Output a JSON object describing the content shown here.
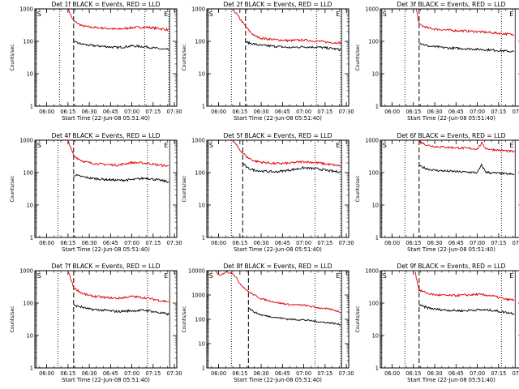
{
  "chart_data": [
    {
      "type": "line",
      "title": "Det 1f BLACK = Events, RED = LLD",
      "ylabel": "Counts/sec",
      "xlabel": "Start Time (22-Jun-08 05:51:40)",
      "xticks": [
        "06:00",
        "06:15",
        "06:30",
        "06:45",
        "07:00",
        "07:15",
        "07:30"
      ],
      "yticks": [
        "1",
        "10",
        "100",
        "1000"
      ],
      "yscale": "log",
      "ylim": [
        1,
        1000
      ],
      "markers": [
        "S",
        "E"
      ],
      "series": [
        {
          "color": "#e00000",
          "x": [
            "06:15",
            "06:19",
            "06:25",
            "06:30",
            "06:40",
            "06:50",
            "07:00",
            "07:10",
            "07:20",
            "07:26"
          ],
          "y": [
            1000,
            420,
            300,
            275,
            255,
            235,
            265,
            275,
            245,
            225
          ]
        },
        {
          "color": "#000000",
          "x": [
            "06:19",
            "06:25",
            "06:30",
            "06:40",
            "06:50",
            "07:00",
            "07:10",
            "07:20",
            "07:26"
          ],
          "y": [
            95,
            82,
            75,
            70,
            64,
            72,
            68,
            58,
            55
          ]
        }
      ]
    },
    {
      "type": "line",
      "title": "Det 2f BLACK = Events, RED = LLD",
      "ylabel": "Counts/sec",
      "xlabel": "Start Time (22-Jun-08 05:51:40)",
      "xticks": [
        "06:00",
        "06:15",
        "06:30",
        "06:45",
        "07:00",
        "07:15",
        "07:30"
      ],
      "yticks": [
        "1",
        "10",
        "100",
        "1000"
      ],
      "yscale": "log",
      "ylim": [
        1,
        1000
      ],
      "markers": [
        "S",
        "E"
      ],
      "series": [
        {
          "color": "#e00000",
          "x": [
            "06:10",
            "06:15",
            "06:20",
            "06:25",
            "06:30",
            "06:40",
            "06:50",
            "07:00",
            "07:10",
            "07:20",
            "07:26"
          ],
          "y": [
            1000,
            500,
            250,
            150,
            125,
            112,
            105,
            110,
            100,
            92,
            90
          ]
        },
        {
          "color": "#000000",
          "x": [
            "06:19",
            "06:25",
            "06:30",
            "06:40",
            "06:50",
            "07:00",
            "07:10",
            "07:20",
            "07:26"
          ],
          "y": [
            95,
            82,
            75,
            70,
            64,
            68,
            66,
            60,
            55
          ]
        }
      ]
    },
    {
      "type": "line",
      "title": "Det 3f BLACK = Events, RED = LLD",
      "ylabel": "Counts/sec",
      "xlabel": "Start Time (22-Jun-08 05:51:40)",
      "xticks": [
        "06:00",
        "06:15",
        "06:30",
        "06:45",
        "07:00",
        "07:15",
        "07:30"
      ],
      "yticks": [
        "1",
        "10",
        "100",
        "1000"
      ],
      "yscale": "log",
      "ylim": [
        1,
        1000
      ],
      "markers": [
        "S",
        "E"
      ],
      "series": [
        {
          "color": "#e00000",
          "x": [
            "06:17",
            "06:19",
            "06:25",
            "06:30",
            "06:40",
            "06:50",
            "07:00",
            "07:10",
            "07:20",
            "07:26"
          ],
          "y": [
            1000,
            330,
            260,
            240,
            220,
            210,
            200,
            185,
            170,
            160
          ]
        },
        {
          "color": "#000000",
          "x": [
            "06:19",
            "06:25",
            "06:30",
            "06:40",
            "06:50",
            "07:00",
            "07:10",
            "07:20",
            "07:26"
          ],
          "y": [
            90,
            72,
            68,
            62,
            60,
            57,
            54,
            50,
            48
          ]
        }
      ]
    },
    {
      "type": "line",
      "title": "Det 4f BLACK = Events, RED = LLD",
      "ylabel": "Counts/sec",
      "xlabel": "Start Time (22-Jun-08 05:51:40)",
      "xticks": [
        "06:00",
        "06:15",
        "06:30",
        "06:45",
        "07:00",
        "07:15",
        "07:30"
      ],
      "yticks": [
        "1",
        "10",
        "100",
        "1000"
      ],
      "yscale": "log",
      "ylim": [
        1,
        1000
      ],
      "markers": [
        "S",
        "E"
      ],
      "series": [
        {
          "color": "#e00000",
          "x": [
            "06:15",
            "06:19",
            "06:25",
            "06:30",
            "06:40",
            "06:50",
            "07:00",
            "07:10",
            "07:20",
            "07:26"
          ],
          "y": [
            1000,
            330,
            230,
            200,
            180,
            170,
            205,
            195,
            170,
            160
          ]
        },
        {
          "color": "#000000",
          "x": [
            "06:19",
            "06:25",
            "06:30",
            "06:40",
            "06:50",
            "07:00",
            "07:10",
            "07:20",
            "07:26"
          ],
          "y": [
            85,
            75,
            68,
            62,
            58,
            60,
            68,
            58,
            52
          ]
        }
      ]
    },
    {
      "type": "line",
      "title": "Det 5f BLACK = Events, RED = LLD",
      "ylabel": "Counts/sec",
      "xlabel": "Start Time (22-Jun-08 05:51:40)",
      "xticks": [
        "06:00",
        "06:15",
        "06:30",
        "06:45",
        "07:00",
        "07:15",
        "07:30"
      ],
      "yticks": [
        "1",
        "10",
        "100",
        "1000"
      ],
      "yscale": "log",
      "ylim": [
        1,
        1000
      ],
      "markers": [
        "S",
        "E"
      ],
      "series": [
        {
          "color": "#e00000",
          "x": [
            "06:10",
            "06:15",
            "06:20",
            "06:25",
            "06:30",
            "06:40",
            "06:50",
            "07:00",
            "07:10",
            "07:20",
            "07:26"
          ],
          "y": [
            1000,
            500,
            300,
            230,
            210,
            190,
            195,
            220,
            200,
            175,
            160
          ]
        },
        {
          "color": "#000000",
          "x": [
            "06:17",
            "06:20",
            "06:25",
            "06:30",
            "06:40",
            "06:50",
            "07:00",
            "07:10",
            "07:20",
            "07:26"
          ],
          "y": [
            200,
            140,
            120,
            112,
            105,
            120,
            140,
            130,
            110,
            105
          ]
        }
      ]
    },
    {
      "type": "line",
      "title": "Det 6f BLACK = Events, RED = LLD",
      "ylabel": "Counts/sec",
      "xlabel": "Start Time (22-Jun-08 05:51:40)",
      "xticks": [
        "06:00",
        "06:15",
        "06:30",
        "06:45",
        "07:00",
        "07:15",
        "07:30"
      ],
      "yticks": [
        "1",
        "10",
        "100",
        "1000"
      ],
      "yscale": "log",
      "ylim": [
        1,
        1000
      ],
      "markers": [
        "S",
        "E"
      ],
      "series": [
        {
          "color": "#e00000",
          "x": [
            "06:19",
            "06:25",
            "06:30",
            "06:40",
            "06:50",
            "07:00",
            "07:03",
            "07:06",
            "07:10",
            "07:20",
            "07:26"
          ],
          "y": [
            900,
            700,
            640,
            600,
            570,
            540,
            800,
            560,
            520,
            470,
            440
          ]
        },
        {
          "color": "#000000",
          "x": [
            "06:19",
            "06:25",
            "06:30",
            "06:40",
            "06:50",
            "07:00",
            "07:03",
            "07:06",
            "07:10",
            "07:20",
            "07:26"
          ],
          "y": [
            160,
            130,
            118,
            110,
            105,
            100,
            170,
            104,
            98,
            92,
            88
          ]
        }
      ]
    },
    {
      "type": "line",
      "title": "Det 7f BLACK = Events, RED = LLD",
      "ylabel": "Counts/sec",
      "xlabel": "Start Time (22-Jun-08 05:51:40)",
      "xticks": [
        "06:00",
        "06:15",
        "06:30",
        "06:45",
        "07:00",
        "07:15",
        "07:30"
      ],
      "yticks": [
        "1",
        "10",
        "100",
        "1000"
      ],
      "yscale": "log",
      "ylim": [
        1,
        1000
      ],
      "markers": [
        "S",
        "E"
      ],
      "series": [
        {
          "color": "#e00000",
          "x": [
            "06:15",
            "06:19",
            "06:25",
            "06:30",
            "06:40",
            "06:50",
            "07:00",
            "07:10",
            "07:20",
            "07:26"
          ],
          "y": [
            1000,
            300,
            200,
            170,
            150,
            140,
            160,
            145,
            120,
            110
          ]
        },
        {
          "color": "#000000",
          "x": [
            "06:19",
            "06:25",
            "06:30",
            "06:40",
            "06:50",
            "07:00",
            "07:10",
            "07:20",
            "07:26"
          ],
          "y": [
            85,
            75,
            65,
            60,
            55,
            58,
            60,
            50,
            45
          ]
        }
      ]
    },
    {
      "type": "line",
      "title": "Det 8f BLACK = Events, RED = LLD",
      "ylabel": "Counts/sec",
      "xlabel": "Start Time (22-Jun-08 05:51:40)",
      "xticks": [
        "06:00",
        "06:15",
        "06:30",
        "06:45",
        "07:00",
        "07:15",
        "07:30"
      ],
      "yticks": [
        "1",
        "10",
        "100",
        "1000",
        "10000"
      ],
      "yscale": "log",
      "ylim": [
        1,
        10000
      ],
      "markers": [
        "S",
        "E"
      ],
      "series": [
        {
          "color": "#e00000",
          "x": [
            "05:58",
            "06:01",
            "06:05",
            "06:10",
            "06:15",
            "06:20",
            "06:25",
            "06:30",
            "06:40",
            "06:50",
            "07:00",
            "07:10",
            "07:20",
            "07:26"
          ],
          "y": [
            9000,
            6000,
            9000,
            8000,
            3000,
            1500,
            1000,
            700,
            500,
            400,
            380,
            300,
            250,
            200
          ]
        },
        {
          "color": "#000000",
          "x": [
            "06:21",
            "06:25",
            "06:30",
            "06:40",
            "06:50",
            "07:00",
            "07:10",
            "07:20",
            "07:26"
          ],
          "y": [
            300,
            200,
            150,
            120,
            100,
            95,
            80,
            70,
            60
          ]
        }
      ]
    },
    {
      "type": "line",
      "title": "Det 9f BLACK = Events, RED = LLD",
      "ylabel": "Counts/sec",
      "xlabel": "Start Time (22-Jun-08 05:51:40)",
      "xticks": [
        "06:00",
        "06:15",
        "06:30",
        "06:45",
        "07:00",
        "07:15",
        "07:30"
      ],
      "yticks": [
        "1",
        "10",
        "100",
        "1000"
      ],
      "yscale": "log",
      "ylim": [
        1,
        1000
      ],
      "markers": [
        "S",
        "E"
      ],
      "series": [
        {
          "color": "#e00000",
          "x": [
            "06:16",
            "06:19",
            "06:25",
            "06:30",
            "06:40",
            "06:50",
            "07:00",
            "07:10",
            "07:20",
            "07:26"
          ],
          "y": [
            1000,
            250,
            200,
            180,
            170,
            175,
            185,
            170,
            130,
            125
          ]
        },
        {
          "color": "#000000",
          "x": [
            "06:19",
            "06:25",
            "06:30",
            "06:40",
            "06:50",
            "07:00",
            "07:10",
            "07:20",
            "07:26"
          ],
          "y": [
            85,
            72,
            65,
            60,
            58,
            62,
            60,
            52,
            48
          ]
        }
      ]
    }
  ]
}
